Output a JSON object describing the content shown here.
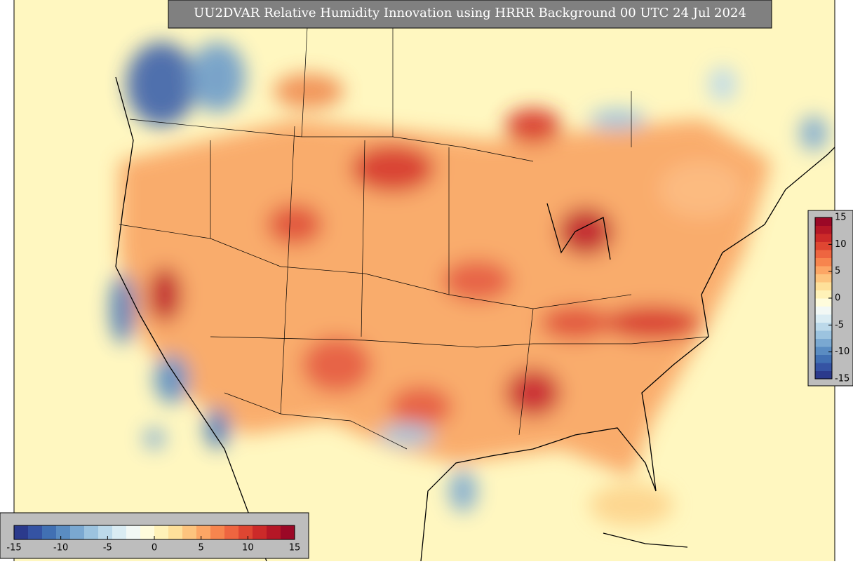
{
  "map": {
    "title": "UU2DVAR Relative Humidity Innovation using HRRR Background 00 UTC 24 Jul 2024",
    "colorbar": {
      "lim": [
        -15,
        15
      ],
      "ticks": [
        -15,
        -10,
        -5,
        0,
        5,
        10,
        15
      ],
      "colors": [
        "#2b3a8c",
        "#3553a3",
        "#4170b3",
        "#5a8cc2",
        "#7aa8d1",
        "#9cc3df",
        "#bcd9ea",
        "#daecf3",
        "#f2f8f5",
        "#fffcdc",
        "#fff2b8",
        "#fee09a",
        "#fdc47e",
        "#fca665",
        "#f7854e",
        "#ee6540",
        "#df4632",
        "#cc2a29",
        "#b51726",
        "#9b0826"
      ]
    },
    "colorbar2": {
      "lim": [
        -15,
        15
      ],
      "ticks": [
        -15,
        -10,
        -5,
        0,
        5,
        10,
        15
      ]
    }
  }
}
